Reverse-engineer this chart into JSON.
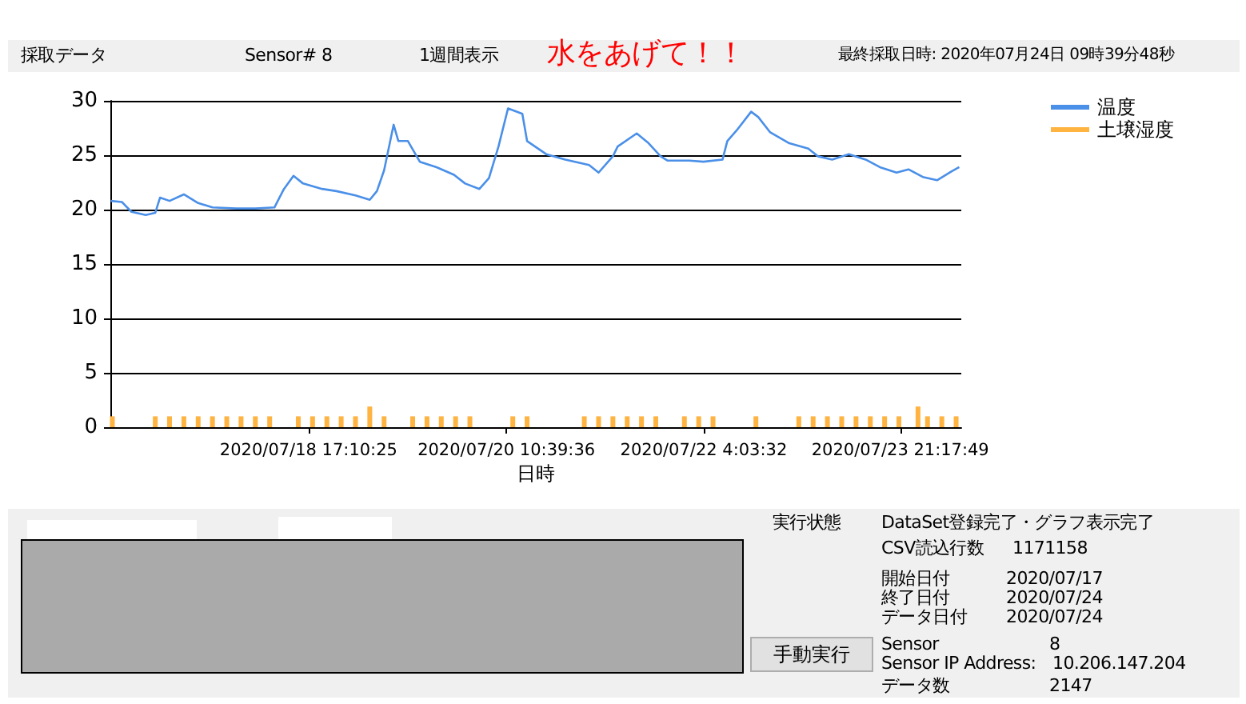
{
  "chart_data": {
    "type": "line",
    "title": "採取データ",
    "xlabel": "日時",
    "annotations": [
      "Sensor#  8",
      "1週間表示",
      "水をあげて！！",
      "最終採取日時: 2020年07月24日 09時39分48秒",
      "実行状態",
      "DataSet登録完了・グラフ表示完了",
      "CSV読込行数",
      "1171158",
      "開始日付",
      "2020/07/17",
      "終了日付",
      "2020/07/24",
      "データ日付",
      "2020/07/24",
      "Sensor",
      "8",
      "Sensor IP Address:",
      "10.206.147.204",
      "データ数",
      "2147",
      "手動実行"
    ],
    "xlim": [
      "2020-07-16T23:35",
      "2020-07-24T10:05"
    ],
    "xticks": [
      {
        "value": "2020-07-18T17:10",
        "label": "2020/07/18 17:10:25"
      },
      {
        "value": "2020-07-20T10:39",
        "label": "2020/07/20 10:39:36"
      },
      {
        "value": "2020-07-22T04:03",
        "label": "2020/07/22 4:03:32"
      },
      {
        "value": "2020-07-23T21:17",
        "label": "2020/07/23 21:17:49"
      }
    ],
    "ylim": [
      0,
      30
    ],
    "yticks": [
      0,
      5,
      10,
      15,
      20,
      25,
      30
    ],
    "grid": "y",
    "legend": "top right",
    "marker": "none",
    "series": [
      {
        "name": "温度",
        "color": "#4a8fe8",
        "x": [
          "2020-07-16T23:40",
          "2020-07-17T02:00",
          "2020-07-17T04:00",
          "2020-07-17T07:00",
          "2020-07-17T09:00",
          "2020-07-17T10:00",
          "2020-07-17T12:00",
          "2020-07-17T15:00",
          "2020-07-17T18:00",
          "2020-07-17T21:00",
          "2020-07-18T02:00",
          "2020-07-18T06:00",
          "2020-07-18T10:00",
          "2020-07-18T12:00",
          "2020-07-18T14:00",
          "2020-07-18T16:00",
          "2020-07-18T20:00",
          "2020-07-18T23:00",
          "2020-07-19T03:00",
          "2020-07-19T06:00",
          "2020-07-19T07:30",
          "2020-07-19T09:00",
          "2020-07-19T11:00",
          "2020-07-19T12:00",
          "2020-07-19T14:00",
          "2020-07-19T16:30",
          "2020-07-19T20:00",
          "2020-07-19T23:40",
          "2020-07-20T02:00",
          "2020-07-20T05:00",
          "2020-07-20T07:00",
          "2020-07-20T09:00",
          "2020-07-20T11:00",
          "2020-07-20T14:00",
          "2020-07-20T15:00",
          "2020-07-20T19:00",
          "2020-07-20T23:00",
          "2020-07-21T04:00",
          "2020-07-21T06:00",
          "2020-07-21T09:00",
          "2020-07-21T10:00",
          "2020-07-21T14:00",
          "2020-07-21T16:30",
          "2020-07-21T19:00",
          "2020-07-21T20:30",
          "2020-07-22T01:00",
          "2020-07-22T04:00",
          "2020-07-22T08:00",
          "2020-07-22T09:00",
          "2020-07-22T11:00",
          "2020-07-22T14:00",
          "2020-07-22T15:30",
          "2020-07-22T18:00",
          "2020-07-22T22:00",
          "2020-07-23T02:00",
          "2020-07-23T04:00",
          "2020-07-23T07:00",
          "2020-07-23T10:30",
          "2020-07-23T14:00",
          "2020-07-23T17:00",
          "2020-07-23T20:30",
          "2020-07-23T23:00",
          "2020-07-24T02:00",
          "2020-07-24T05:00",
          "2020-07-24T08:00",
          "2020-07-24T09:39"
        ],
        "values": [
          20.8,
          20.7,
          19.8,
          19.5,
          19.7,
          21.1,
          20.8,
          21.4,
          20.6,
          20.2,
          20.1,
          20.1,
          20.2,
          21.9,
          23.1,
          22.4,
          21.9,
          21.7,
          21.3,
          20.9,
          21.7,
          23.6,
          27.8,
          26.3,
          26.3,
          24.4,
          23.9,
          23.2,
          22.4,
          21.9,
          22.9,
          25.8,
          29.3,
          28.8,
          26.3,
          25.1,
          24.6,
          24.1,
          23.4,
          24.9,
          25.8,
          27.0,
          26.1,
          24.9,
          24.5,
          24.5,
          24.4,
          24.6,
          26.3,
          27.3,
          29.0,
          28.5,
          27.1,
          26.1,
          25.6,
          24.9,
          24.6,
          25.1,
          24.6,
          23.9,
          23.4,
          23.7,
          23.0,
          22.7,
          23.5,
          23.9
        ]
      },
      {
        "name": "土壌湿度",
        "type": "bar",
        "color": "#ffb340",
        "x": [
          "2020-07-17T00:00",
          "2020-07-17T09:00",
          "2020-07-17T12:00",
          "2020-07-17T15:00",
          "2020-07-17T18:00",
          "2020-07-17T21:00",
          "2020-07-18T00:00",
          "2020-07-18T03:00",
          "2020-07-18T06:00",
          "2020-07-18T09:00",
          "2020-07-18T15:00",
          "2020-07-18T18:00",
          "2020-07-18T21:00",
          "2020-07-19T00:00",
          "2020-07-19T03:00",
          "2020-07-19T06:00",
          "2020-07-19T09:00",
          "2020-07-19T15:00",
          "2020-07-19T18:00",
          "2020-07-19T21:00",
          "2020-07-20T00:00",
          "2020-07-20T03:00",
          "2020-07-20T12:00",
          "2020-07-20T15:00",
          "2020-07-21T03:00",
          "2020-07-21T06:00",
          "2020-07-21T09:00",
          "2020-07-21T12:00",
          "2020-07-21T15:00",
          "2020-07-21T18:00",
          "2020-07-22T00:00",
          "2020-07-22T03:00",
          "2020-07-22T06:00",
          "2020-07-22T15:00",
          "2020-07-23T00:00",
          "2020-07-23T03:00",
          "2020-07-23T06:00",
          "2020-07-23T09:00",
          "2020-07-23T12:00",
          "2020-07-23T15:00",
          "2020-07-23T18:00",
          "2020-07-23T21:00",
          "2020-07-24T01:00",
          "2020-07-24T03:00",
          "2020-07-24T06:00",
          "2020-07-24T09:00"
        ],
        "values": [
          1,
          1,
          1,
          1,
          1,
          1,
          1,
          1,
          1,
          1,
          1,
          1,
          1,
          1,
          1,
          1.9,
          1,
          1,
          1,
          1,
          1,
          1,
          1,
          1,
          1,
          1,
          1,
          1,
          1,
          1,
          1,
          1,
          1,
          1,
          1,
          1,
          1,
          1,
          1,
          1,
          1,
          1,
          1.9,
          1,
          1,
          1
        ]
      }
    ]
  }
}
